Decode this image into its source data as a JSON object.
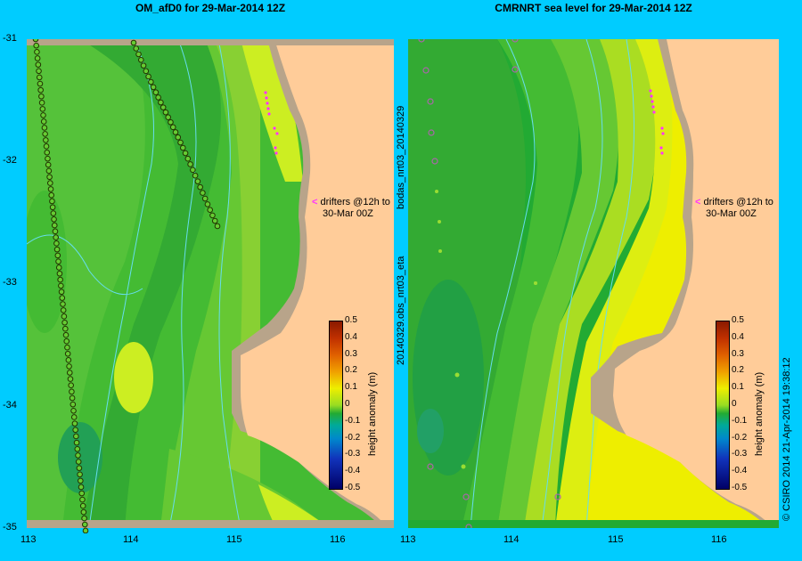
{
  "panels": [
    {
      "title": "OM_afD0 for 29-Mar-2014 12Z"
    },
    {
      "title": "CMRNRT sea level  for 29-Mar-2014 12Z"
    }
  ],
  "y_ticks": [
    "-31",
    "-32",
    "-33",
    "-34",
    "-35"
  ],
  "x_ticks": [
    "113",
    "114",
    "115",
    "116"
  ],
  "annotation": {
    "line1": "drifters @12h to",
    "line2": "30-Mar 00Z"
  },
  "colorbar": {
    "label": "height anomaly (m)",
    "ticks": [
      "0.5",
      "0.4",
      "0.3",
      "0.2",
      "0.1",
      "0",
      "-0.1",
      "-0.2",
      "-0.3",
      "-0.4",
      "-0.5"
    ]
  },
  "side_labels": {
    "obs_file": "20140329.obs_nrt03_eta",
    "bodas_file": "bodas_nrt03_20140329"
  },
  "footer": "© CSIRO 2014   21-Apr-2014 19:38:12",
  "colors": {
    "background": "#00ccff",
    "land": "#ffcc99",
    "coast": "#b8a48a",
    "drifter": "#ff33ff"
  }
}
